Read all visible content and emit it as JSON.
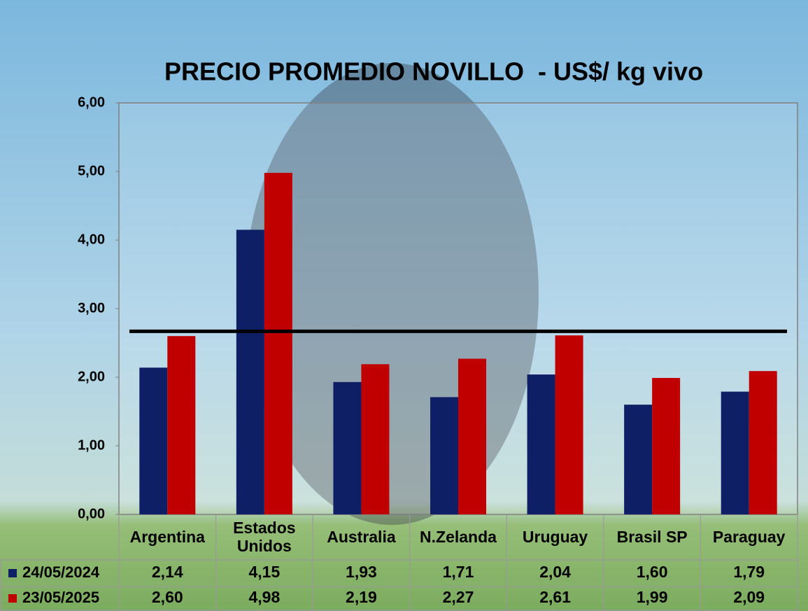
{
  "chart_data": {
    "type": "bar",
    "title": "PRECIO PROMEDIO NOVILLO  - US$/ kg vivo",
    "categories": [
      "Argentina",
      "Estados Unidos",
      "Australia",
      "N.Zelanda",
      "Uruguay",
      "Brasil SP",
      "Paraguay"
    ],
    "series": [
      {
        "name": "24/05/2024",
        "color": "#0f1f66",
        "values": [
          2.14,
          4.15,
          1.93,
          1.71,
          2.04,
          1.6,
          1.79
        ],
        "value_labels": [
          "2,14",
          "4,15",
          "1,93",
          "1,71",
          "2,04",
          "1,60",
          "1,79"
        ]
      },
      {
        "name": "23/05/2025",
        "color": "#c00000",
        "values": [
          2.6,
          4.98,
          2.19,
          2.27,
          2.61,
          1.99,
          2.09
        ],
        "value_labels": [
          "2,60",
          "4,98",
          "2,19",
          "2,27",
          "2,61",
          "1,99",
          "2,09"
        ]
      }
    ],
    "ylim": [
      0,
      6
    ],
    "yticks": [
      {
        "value": 0,
        "label": "0,00"
      },
      {
        "value": 1,
        "label": "1,00"
      },
      {
        "value": 2,
        "label": "2,00"
      },
      {
        "value": 3,
        "label": "3,00"
      },
      {
        "value": 4,
        "label": "4,00"
      },
      {
        "value": 5,
        "label": "5,00"
      },
      {
        "value": 6,
        "label": "6,00"
      }
    ],
    "reference_line": 2.67,
    "reference_line_color": "#000000"
  }
}
